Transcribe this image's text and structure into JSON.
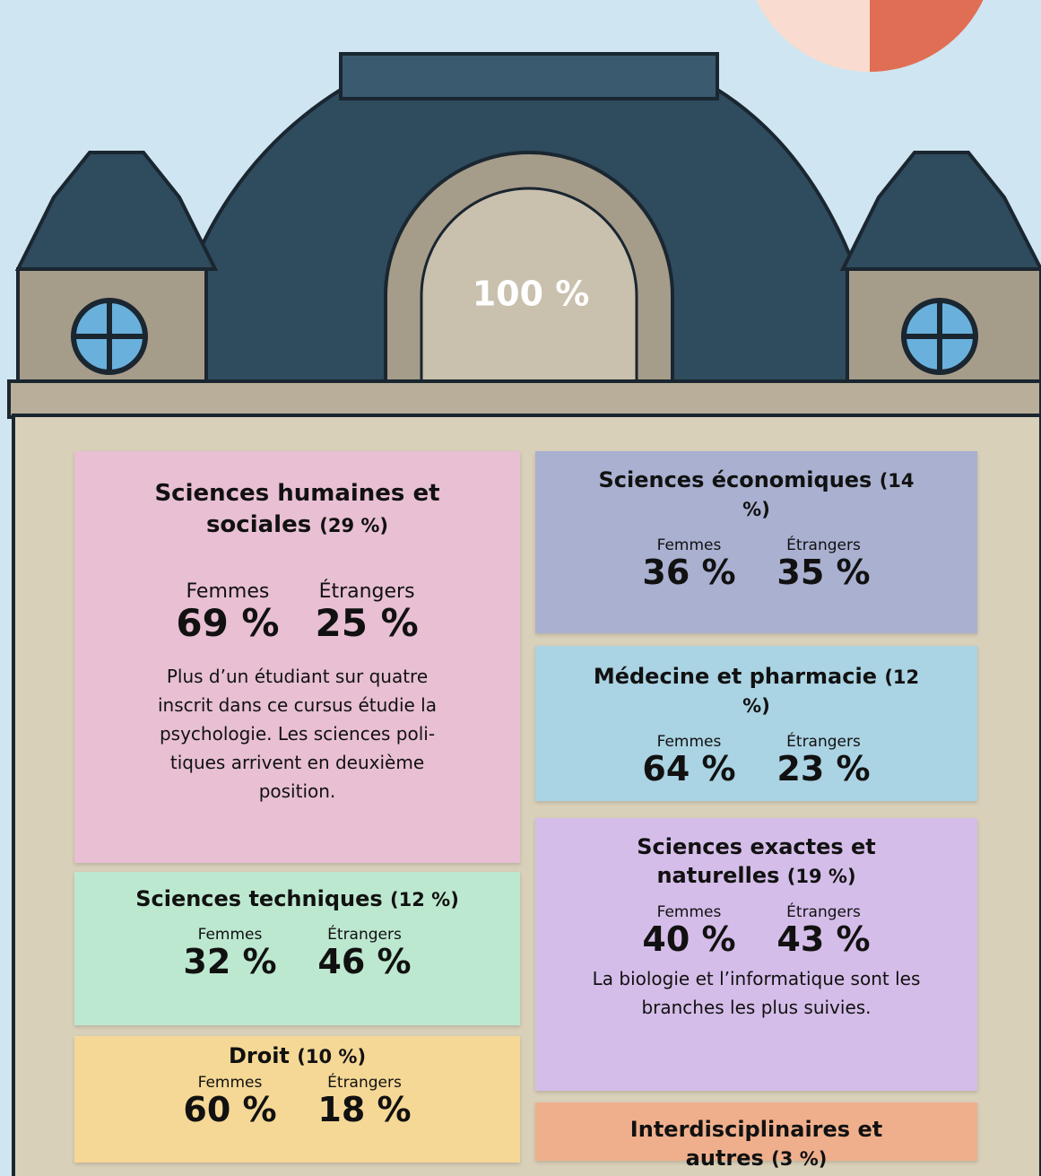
{
  "center_label": "100 %",
  "sections": [
    {
      "title": "Sciences humaines et sociales",
      "share": "(29 %)",
      "women_label": "Femmes",
      "women": "69 %",
      "foreigners_label": "Étrangers",
      "foreigners": "25 %",
      "note": "Plus d’un étudiant sur quatre inscrit dans ce cursus étudie la psychologie. Les sciences poli-tiques arrivent en deuxième position."
    },
    {
      "title": "Sciences techniques",
      "share": "(12 %)",
      "women_label": "Femmes",
      "women": "32 %",
      "foreigners_label": "Étrangers",
      "foreigners": "46 %"
    },
    {
      "title": "Droit",
      "share": "(10 %)",
      "women_label": "Femmes",
      "women": "60 %",
      "foreigners_label": "Étrangers",
      "foreigners": "18 %"
    },
    {
      "title": "Sciences économiques",
      "share": "(14 %)",
      "women_label": "Femmes",
      "women": "36 %",
      "foreigners_label": "Étrangers",
      "foreigners": "35 %"
    },
    {
      "title": "Médecine et pharmacie",
      "share": "(12 %)",
      "women_label": "Femmes",
      "women": "64 %",
      "foreigners_label": "Étrangers",
      "foreigners": "23 %"
    },
    {
      "title": "Sciences exactes et naturelles",
      "share": "(19 %)",
      "women_label": "Femmes",
      "women": "40 %",
      "foreigners_label": "Étrangers",
      "foreigners": "43 %",
      "note": "La biologie et l’informatique sont les branches les plus suivies."
    },
    {
      "title": "Interdisciplinaires et autres",
      "share": "(3 %)"
    }
  ]
}
